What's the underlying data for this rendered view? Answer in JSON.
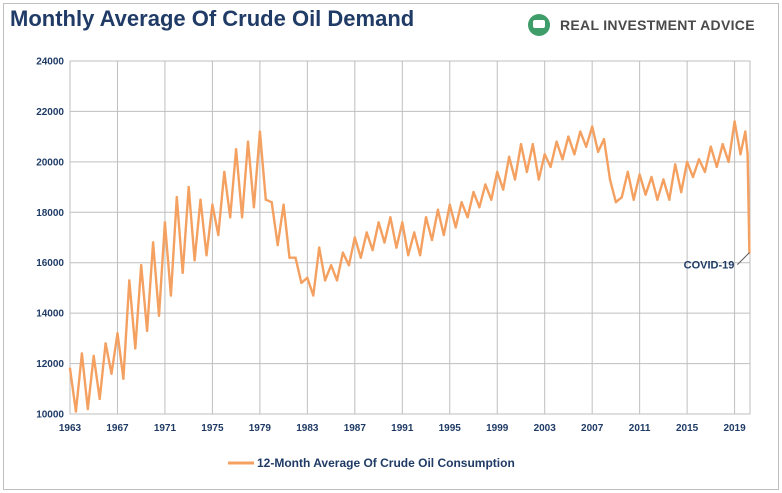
{
  "title": "Monthly Average Of Crude Oil Demand",
  "brand": {
    "name": "REAL INVESTMENT ADVICE",
    "logo_icon": "chat-bubble-icon",
    "color": "#3f9d6a"
  },
  "colors": {
    "line": "#f4a061",
    "grid": "#bfbfbf",
    "text": "#1f3b66"
  },
  "legend": {
    "label": "12-Month Average Of Crude Oil Consumption"
  },
  "annotation": {
    "label": "COVID-19"
  },
  "chart_data": {
    "type": "line",
    "title": "Monthly Average Of Crude Oil Demand",
    "xlabel": "",
    "ylabel": "",
    "x_ticks": [
      "1963",
      "1967",
      "1971",
      "1975",
      "1979",
      "1983",
      "1987",
      "1991",
      "1995",
      "1999",
      "2003",
      "2007",
      "2011",
      "2015",
      "2019"
    ],
    "y_ticks": [
      "10000",
      "12000",
      "14000",
      "16000",
      "18000",
      "20000",
      "22000",
      "24000"
    ],
    "xlim": [
      1963,
      2020.3
    ],
    "ylim": [
      10000,
      24000
    ],
    "grid": true,
    "legend_position": "bottom",
    "annotations": [
      {
        "text": "COVID-19",
        "x": 2020.25,
        "y": 16400
      }
    ],
    "series": [
      {
        "name": "12-Month Average Of Crude Oil Consumption",
        "x": [
          1963.0,
          1963.5,
          1964.0,
          1964.5,
          1965.0,
          1965.5,
          1966.0,
          1966.5,
          1967.0,
          1967.5,
          1968.0,
          1968.5,
          1969.0,
          1969.5,
          1970.0,
          1970.5,
          1971.0,
          1971.5,
          1972.0,
          1972.5,
          1973.0,
          1973.5,
          1974.0,
          1974.5,
          1975.0,
          1975.5,
          1976.0,
          1976.5,
          1977.0,
          1977.5,
          1978.0,
          1978.5,
          1979.0,
          1979.5,
          1980.0,
          1980.5,
          1981.0,
          1981.5,
          1982.0,
          1982.5,
          1983.0,
          1983.5,
          1984.0,
          1984.5,
          1985.0,
          1985.5,
          1986.0,
          1986.5,
          1987.0,
          1987.5,
          1988.0,
          1988.5,
          1989.0,
          1989.5,
          1990.0,
          1990.5,
          1991.0,
          1991.5,
          1992.0,
          1992.5,
          1993.0,
          1993.5,
          1994.0,
          1994.5,
          1995.0,
          1995.5,
          1996.0,
          1996.5,
          1997.0,
          1997.5,
          1998.0,
          1998.5,
          1999.0,
          1999.5,
          2000.0,
          2000.5,
          2001.0,
          2001.5,
          2002.0,
          2002.5,
          2003.0,
          2003.5,
          2004.0,
          2004.5,
          2005.0,
          2005.5,
          2006.0,
          2006.5,
          2007.0,
          2007.5,
          2008.0,
          2008.5,
          2009.0,
          2009.5,
          2010.0,
          2010.5,
          2011.0,
          2011.5,
          2012.0,
          2012.5,
          2013.0,
          2013.5,
          2014.0,
          2014.5,
          2015.0,
          2015.5,
          2016.0,
          2016.5,
          2017.0,
          2017.5,
          2018.0,
          2018.5,
          2019.0,
          2019.5,
          2019.9,
          2020.1,
          2020.25
        ],
        "values": [
          11800,
          10100,
          12400,
          10200,
          12300,
          10600,
          12800,
          11600,
          13200,
          11400,
          15300,
          12600,
          15900,
          13300,
          16800,
          13900,
          17600,
          14700,
          18600,
          15600,
          19000,
          16100,
          18500,
          16300,
          18300,
          17100,
          19600,
          17800,
          20500,
          17800,
          20800,
          18200,
          21200,
          18500,
          18400,
          16700,
          18300,
          16200,
          16200,
          15200,
          15400,
          14700,
          16600,
          15300,
          15900,
          15300,
          16400,
          15900,
          17000,
          16200,
          17200,
          16500,
          17600,
          16800,
          17800,
          16600,
          17600,
          16300,
          17200,
          16300,
          17800,
          16900,
          18100,
          17100,
          18300,
          17400,
          18400,
          17800,
          18800,
          18200,
          19100,
          18500,
          19600,
          18900,
          20200,
          19300,
          20700,
          19600,
          20700,
          19300,
          20300,
          19800,
          20800,
          20100,
          21000,
          20300,
          21200,
          20600,
          21400,
          20400,
          20900,
          19300,
          18400,
          18600,
          19600,
          18500,
          19500,
          18700,
          19400,
          18500,
          19300,
          18500,
          19900,
          18800,
          20000,
          19400,
          20100,
          19600,
          20600,
          19800,
          20700,
          20000,
          21600,
          20300,
          21200,
          20300,
          16400
        ]
      }
    ]
  }
}
